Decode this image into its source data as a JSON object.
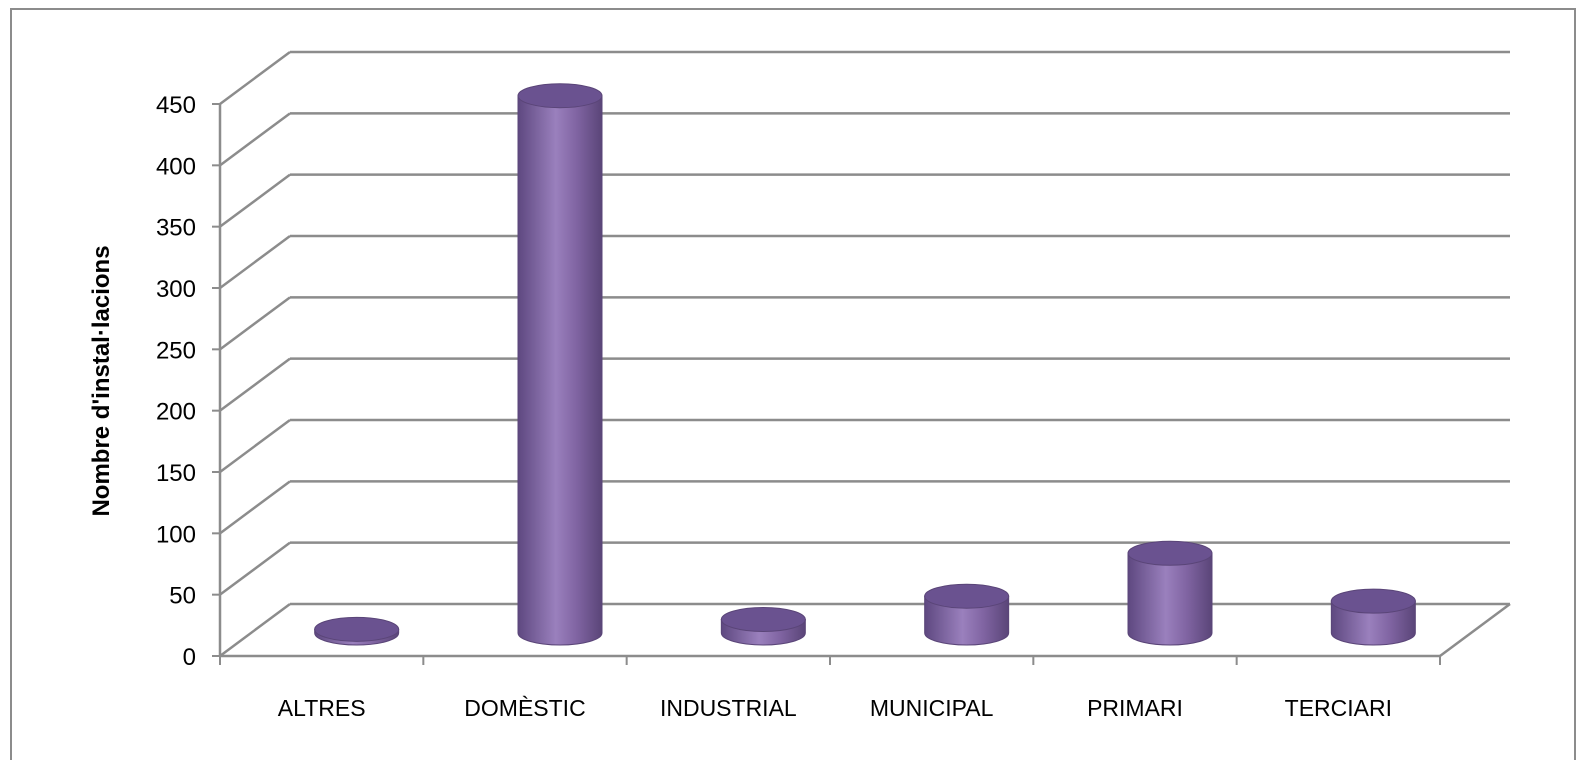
{
  "chart_data": {
    "type": "bar",
    "style": "3d-cylinder",
    "categories": [
      "ALTRES",
      "DOMÈSTIC",
      "INDUSTRIAL",
      "MUNICIPAL",
      "PRIMARI",
      "TERCIARI"
    ],
    "values": [
      3,
      438,
      11,
      30,
      65,
      26
    ],
    "ylabel": "Nombre d'instal·lacions",
    "xlabel": "",
    "ylim": [
      0,
      450
    ],
    "yticks": [
      0,
      50,
      100,
      150,
      200,
      250,
      300,
      350,
      400,
      450
    ],
    "grid": true,
    "legend": "none",
    "colors": {
      "bar": "#8064a2",
      "bar_dark": "#5a4578",
      "bar_light": "#a28bc2",
      "bar_top": "#6a5290",
      "grid": "#8c8c8c"
    }
  }
}
